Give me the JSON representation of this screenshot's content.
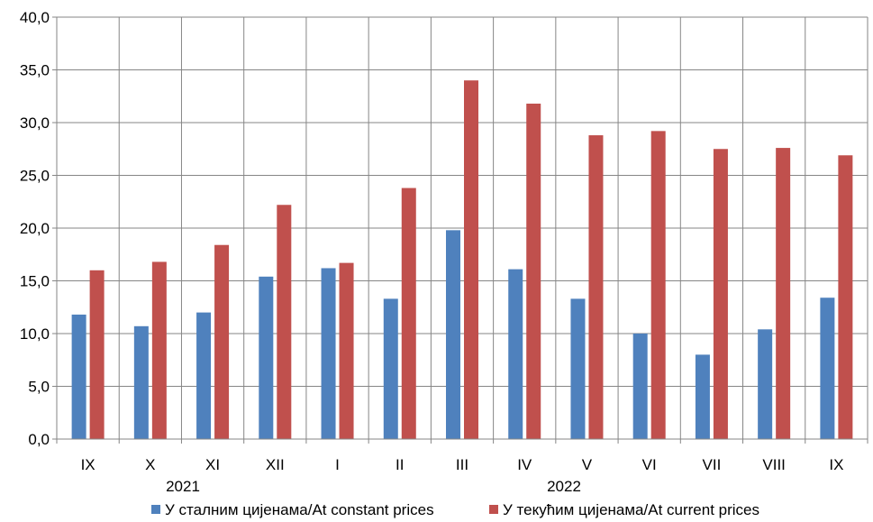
{
  "chart_data": {
    "type": "bar",
    "categories": [
      "IX",
      "X",
      "XI",
      "XII",
      "I",
      "II",
      "III",
      "IV",
      "V",
      "VI",
      "VII",
      "VIII",
      "IX"
    ],
    "year_labels": [
      "2021",
      "2022"
    ],
    "series": [
      {
        "name": "У сталним цијенама/At constant prices",
        "color": "#4f81bd",
        "values": [
          11.8,
          10.7,
          12.0,
          15.4,
          16.2,
          13.3,
          19.8,
          16.1,
          13.3,
          10.0,
          8.0,
          10.4,
          13.4
        ]
      },
      {
        "name": "У текућим цијенама/At current prices",
        "color": "#c0504d",
        "values": [
          16.0,
          16.8,
          18.4,
          22.2,
          16.7,
          23.8,
          34.0,
          31.8,
          28.8,
          29.2,
          27.5,
          27.6,
          26.9
        ]
      }
    ],
    "ylim": [
      0,
      40
    ],
    "yticks": [
      "0,0",
      "5,0",
      "10,0",
      "15,0",
      "20,0",
      "25,0",
      "30,0",
      "35,0",
      "40,0"
    ],
    "grid": true,
    "legend_position": "bottom"
  }
}
